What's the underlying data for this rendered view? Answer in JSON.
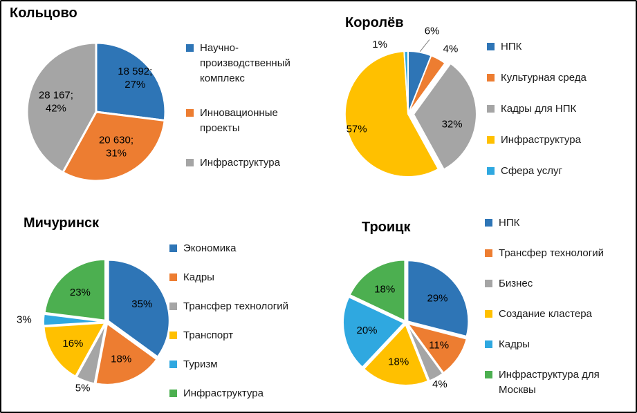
{
  "figure": {
    "background": "#ffffff",
    "border_color": "#000000",
    "palette": {
      "blue": "#2E75B6",
      "orange": "#ED7D31",
      "gray": "#A5A5A5",
      "yellow": "#FFC000",
      "light_blue": "#2FA8E0",
      "green": "#4CAF50"
    }
  },
  "chart_data": [
    {
      "type": "pie",
      "title": "Кольцово",
      "legend_position": "right",
      "slices": [
        {
          "name": "Научно-производственный комплекс",
          "value": 18592,
          "pct": 27,
          "color": "#2E75B6",
          "label_lines": [
            "18 592;",
            "27%"
          ],
          "label_pos": "inside",
          "lr": 0.75
        },
        {
          "name": "Инновационные проекты",
          "value": 20630,
          "pct": 31,
          "color": "#ED7D31",
          "label_lines": [
            "20 630;",
            "31%"
          ],
          "label_pos": "inside",
          "la": 150,
          "lr": 0.58
        },
        {
          "name": "Инфраструктура",
          "value": 28167,
          "pct": 42,
          "color": "#A5A5A5",
          "label_lines": [
            "28 167;",
            "42%"
          ],
          "label_pos": "inside",
          "lr": 0.6
        }
      ]
    },
    {
      "type": "pie",
      "title": "Королёв",
      "legend_position": "right",
      "slices": [
        {
          "name": "НПК",
          "pct": 6,
          "color": "#2E75B6",
          "label_lines": [
            "6%"
          ],
          "label_pos": "outside",
          "leader": true,
          "la": 16,
          "lr": 1.38
        },
        {
          "name": "Культурная среда",
          "pct": 4,
          "color": "#ED7D31",
          "label_lines": [
            "4%"
          ],
          "label_pos": "outside",
          "la": 33,
          "lr": 1.24
        },
        {
          "name": "Кадры для НПК",
          "pct": 32,
          "color": "#A5A5A5",
          "label_lines": [
            "32%"
          ],
          "label_pos": "inside",
          "explode": 8,
          "la": 104,
          "lr": 0.63
        },
        {
          "name": "Инфраструктура",
          "pct": 57,
          "color": "#FFC000",
          "label_lines": [
            "57%"
          ],
          "label_pos": "inside",
          "la": 254,
          "lr": 0.85
        },
        {
          "name": "Сфера услуг",
          "pct": 1,
          "color": "#2FA8E0",
          "label_lines": [
            "1%"
          ],
          "label_pos": "outside",
          "la": 338,
          "lr": 1.2
        }
      ]
    },
    {
      "type": "pie",
      "title": "Мичуринск",
      "legend_position": "right",
      "slices": [
        {
          "name": "Экономика",
          "pct": 35,
          "color": "#2E75B6",
          "label_lines": [
            "35%"
          ],
          "label_pos": "inside"
        },
        {
          "name": "Кадры",
          "pct": 18,
          "color": "#ED7D31",
          "label_lines": [
            "18%"
          ],
          "label_pos": "inside"
        },
        {
          "name": "Трансфер технологий",
          "pct": 5,
          "color": "#A5A5A5",
          "label_lines": [
            "5%"
          ],
          "label_pos": "outside",
          "lr": 1.12
        },
        {
          "name": "Транспорт",
          "pct": 16,
          "color": "#FFC000",
          "label_lines": [
            "16%"
          ],
          "label_pos": "inside"
        },
        {
          "name": "Туризм",
          "pct": 3,
          "color": "#2FA8E0",
          "label_lines": [
            "3%"
          ],
          "label_pos": "outside",
          "lr": 1.32
        },
        {
          "name": "Инфраструктура",
          "pct": 23,
          "color": "#4CAF50",
          "label_lines": [
            "23%"
          ],
          "label_pos": "inside"
        }
      ]
    },
    {
      "type": "pie",
      "title": "Троицк",
      "legend_position": "right",
      "slices": [
        {
          "name": "НПК",
          "pct": 29,
          "color": "#2E75B6",
          "label_lines": [
            "29%"
          ],
          "label_pos": "inside"
        },
        {
          "name": "Трансфер технологий",
          "pct": 11,
          "color": "#ED7D31",
          "label_lines": [
            "11%"
          ],
          "label_pos": "inside"
        },
        {
          "name": "Бизнес",
          "pct": 4,
          "color": "#A5A5A5",
          "label_lines": [
            "4%"
          ],
          "label_pos": "outside",
          "lr": 1.12
        },
        {
          "name": "Создание кластера",
          "pct": 18,
          "color": "#FFC000",
          "label_lines": [
            "18%"
          ],
          "label_pos": "inside"
        },
        {
          "name": "Кадры",
          "pct": 20,
          "color": "#2FA8E0",
          "label_lines": [
            "20%"
          ],
          "label_pos": "inside"
        },
        {
          "name": "Инфраструктура для Москвы",
          "pct": 18,
          "color": "#4CAF50",
          "label_lines": [
            "18%"
          ],
          "label_pos": "inside"
        }
      ]
    }
  ]
}
